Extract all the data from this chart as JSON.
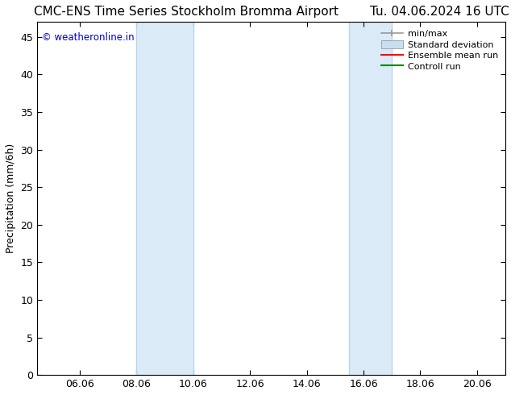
{
  "title": "CMC-ENS Time Series Stockholm Bromma Airport        Tu. 04.06.2024 16 UTC",
  "ylabel": "Precipitation (mm/6h)",
  "watermark": "© weatheronline.in",
  "watermark_color": "#0000cc",
  "xlim_left": 4.5,
  "xlim_right": 21.0,
  "ylim_bottom": 0,
  "ylim_top": 47,
  "xtick_labels": [
    "06.06",
    "08.06",
    "10.06",
    "12.06",
    "14.06",
    "16.06",
    "18.06",
    "20.06"
  ],
  "xtick_positions": [
    6.0,
    8.0,
    10.0,
    12.0,
    14.0,
    16.0,
    18.0,
    20.0
  ],
  "ytick_positions": [
    0,
    5,
    10,
    15,
    20,
    25,
    30,
    35,
    40,
    45
  ],
  "shaded_bands": [
    {
      "xmin": 8.0,
      "xmax": 10.0,
      "color": "#daeaf7"
    },
    {
      "xmin": 15.5,
      "xmax": 17.0,
      "color": "#daeaf7"
    }
  ],
  "vertical_lines": [
    8.0,
    10.0,
    15.5,
    17.0
  ],
  "vline_color": "#b8d4e8",
  "background_color": "#ffffff",
  "plot_bg_color": "#ffffff",
  "legend_entries": [
    {
      "label": "min/max",
      "color": "#999999",
      "style": "minmax"
    },
    {
      "label": "Standard deviation",
      "color": "#c8dff0",
      "style": "fill"
    },
    {
      "label": "Ensemble mean run",
      "color": "#ff0000",
      "style": "line"
    },
    {
      "label": "Controll run",
      "color": "#008800",
      "style": "line"
    }
  ],
  "title_fontsize": 11,
  "axis_fontsize": 9,
  "tick_fontsize": 9,
  "legend_fontsize": 8
}
